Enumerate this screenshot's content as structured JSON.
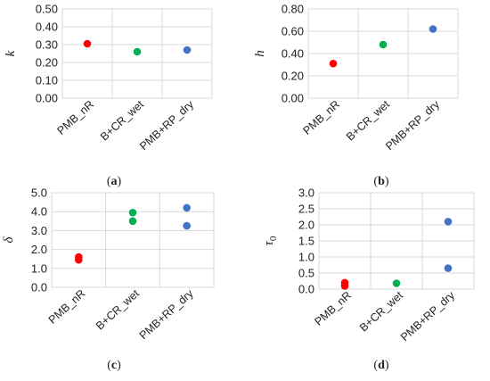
{
  "chart_data": [
    {
      "type": "scatter",
      "panel_label": "(a)",
      "ylabel": "k",
      "ylim": [
        0,
        0.5
      ],
      "ytick_labels": [
        "0.00",
        "0.10",
        "0.20",
        "0.30",
        "0.40",
        "0.50"
      ],
      "categories": [
        "PMB_nR",
        "B+CR_wet",
        "PMB+RP_dry"
      ],
      "grid": true,
      "series": [
        {
          "color": "#ff0000",
          "points": [
            {
              "x": "PMB_nR",
              "y": 0.305
            }
          ]
        },
        {
          "color": "#00b050",
          "points": [
            {
              "x": "B+CR_wet",
              "y": 0.26
            }
          ]
        },
        {
          "color": "#4472c4",
          "points": [
            {
              "x": "PMB+RP_dry",
              "y": 0.27
            }
          ]
        }
      ]
    },
    {
      "type": "scatter",
      "panel_label": "(b)",
      "ylabel": "h",
      "ylim": [
        0,
        0.8
      ],
      "ytick_labels": [
        "0.00",
        "0.20",
        "0.40",
        "0.60",
        "0.80"
      ],
      "categories": [
        "PMB_nR",
        "B+CR_wet",
        "PMB+RP_dry"
      ],
      "grid": true,
      "series": [
        {
          "color": "#ff0000",
          "points": [
            {
              "x": "PMB_nR",
              "y": 0.31
            }
          ]
        },
        {
          "color": "#00b050",
          "points": [
            {
              "x": "B+CR_wet",
              "y": 0.48
            }
          ]
        },
        {
          "color": "#4472c4",
          "points": [
            {
              "x": "PMB+RP_dry",
              "y": 0.62
            }
          ]
        }
      ]
    },
    {
      "type": "scatter",
      "panel_label": "(c)",
      "ylabel": "δ",
      "ylim": [
        0,
        5
      ],
      "ytick_labels": [
        "0.0",
        "1.0",
        "2.0",
        "3.0",
        "4.0",
        "5.0"
      ],
      "categories": [
        "PMB_nR",
        "B+CR_wet",
        "PMB+RP_dry"
      ],
      "grid": true,
      "series": [
        {
          "color": "#ff0000",
          "points": [
            {
              "x": "PMB_nR",
              "y": 1.6
            },
            {
              "x": "PMB_nR",
              "y": 1.45
            }
          ]
        },
        {
          "color": "#00b050",
          "points": [
            {
              "x": "B+CR_wet",
              "y": 3.95
            },
            {
              "x": "B+CR_wet",
              "y": 3.5
            }
          ]
        },
        {
          "color": "#4472c4",
          "points": [
            {
              "x": "PMB+RP_dry",
              "y": 4.2
            },
            {
              "x": "PMB+RP_dry",
              "y": 3.25
            }
          ]
        }
      ]
    },
    {
      "type": "scatter",
      "panel_label": "(d)",
      "ylabel": "τ0",
      "ylim": [
        0,
        3
      ],
      "ytick_labels": [
        "0.0",
        "0.5",
        "1.0",
        "1.5",
        "2.0",
        "2.5",
        "3.0"
      ],
      "categories": [
        "PMB_nR",
        "B+CR_wet",
        "PMB+RP_dry"
      ],
      "grid": true,
      "series": [
        {
          "color": "#ff0000",
          "points": [
            {
              "x": "PMB_nR",
              "y": 0.2
            },
            {
              "x": "PMB_nR",
              "y": 0.1
            }
          ]
        },
        {
          "color": "#00b050",
          "points": [
            {
              "x": "B+CR_wet",
              "y": 0.18
            }
          ]
        },
        {
          "color": "#4472c4",
          "points": [
            {
              "x": "PMB+RP_dry",
              "y": 2.1
            },
            {
              "x": "PMB+RP_dry",
              "y": 0.65
            }
          ]
        }
      ]
    }
  ]
}
